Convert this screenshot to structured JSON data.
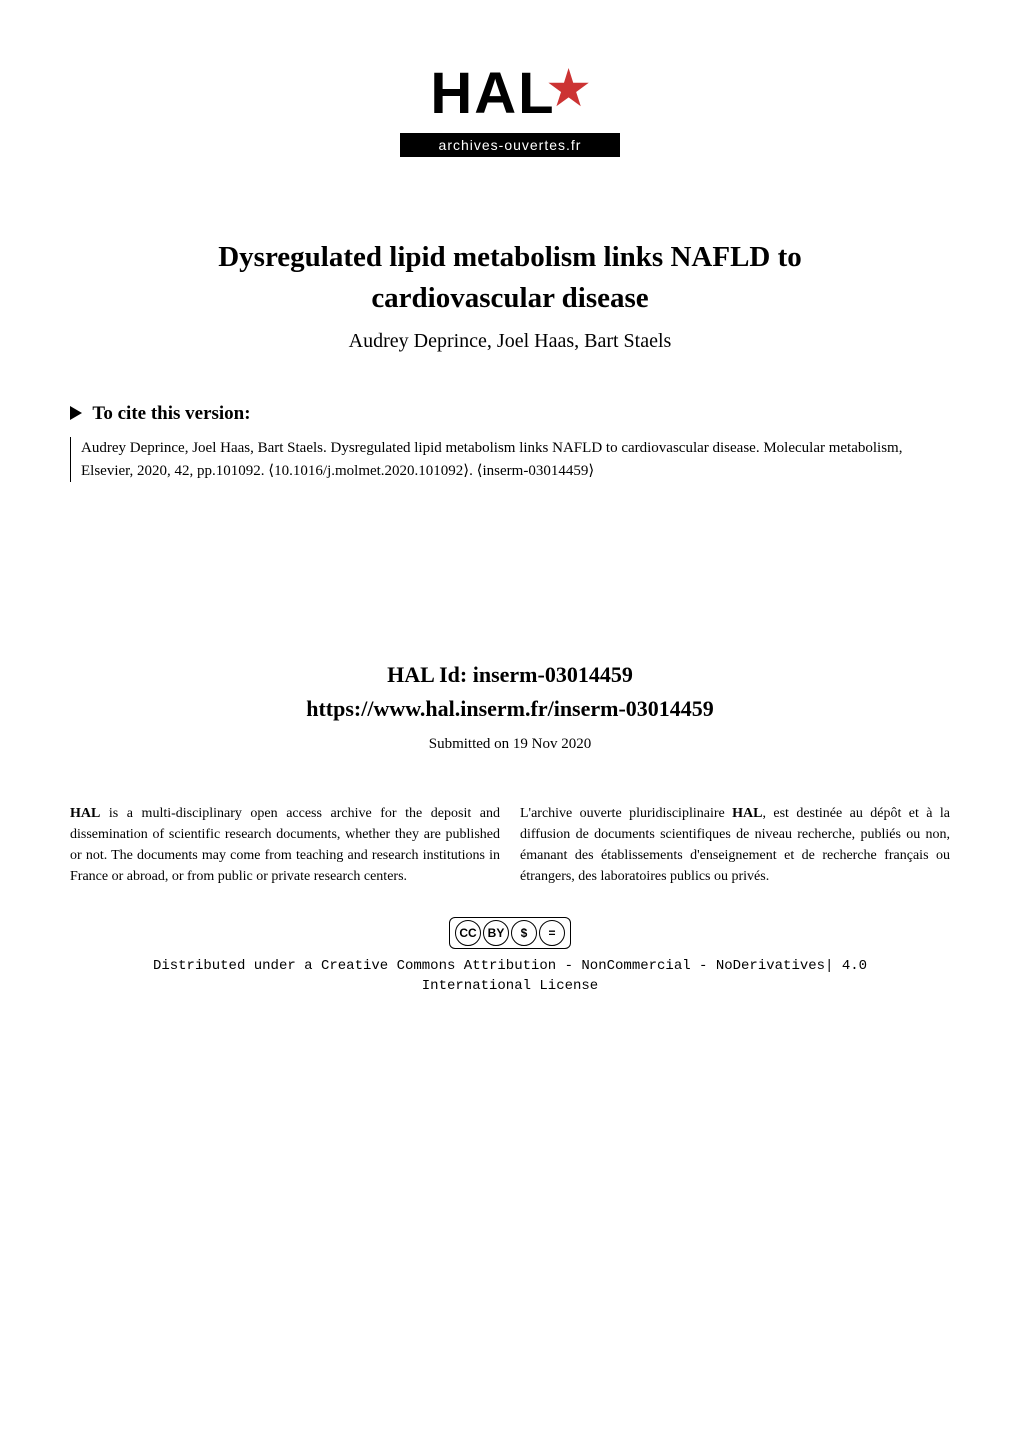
{
  "logo": {
    "text": "HAL",
    "subtext": "archives-ouvertes.fr"
  },
  "paper": {
    "title_line1": "Dysregulated lipid metabolism links NAFLD to",
    "title_line2": "cardiovascular disease",
    "authors": "Audrey Deprince, Joel Haas, Bart Staels"
  },
  "cite": {
    "header": "To cite this version:",
    "text": "Audrey Deprince, Joel Haas, Bart Staels. Dysregulated lipid metabolism links NAFLD to cardiovascular disease. Molecular metabolism, Elsevier, 2020, 42, pp.101092. ⟨10.1016/j.molmet.2020.101092⟩. ⟨inserm-03014459⟩"
  },
  "hal": {
    "id_label": "HAL Id: inserm-03014459",
    "url": "https://www.hal.inserm.fr/inserm-03014459",
    "submitted": "Submitted on 19 Nov 2020"
  },
  "description": {
    "english_bold": "HAL",
    "english": " is a multi-disciplinary open access archive for the deposit and dissemination of scientific research documents, whether they are published or not. The documents may come from teaching and research institutions in France or abroad, or from public or private research centers.",
    "french_prefix": "L'archive ouverte pluridisciplinaire ",
    "french_bold": "HAL",
    "french": ", est destinée au dépôt et à la diffusion de documents scientifiques de niveau recherche, publiés ou non, émanant des établissements d'enseignement et de recherche français ou étrangers, des laboratoires publics ou privés."
  },
  "license": {
    "cc_icons": [
      "CC",
      "BY",
      "$",
      "="
    ],
    "text_line1": "Distributed under a Creative Commons Attribution - NonCommercial - NoDerivatives| 4.0",
    "text_line2": "International License"
  },
  "colors": {
    "background": "#ffffff",
    "text": "#000000",
    "accent": "#cc3333"
  },
  "typography": {
    "title_fontsize": 29,
    "authors_fontsize": 20,
    "cite_header_fontsize": 19,
    "citation_fontsize": 15,
    "hal_id_fontsize": 22,
    "description_fontsize": 14,
    "license_fontsize": 14
  }
}
